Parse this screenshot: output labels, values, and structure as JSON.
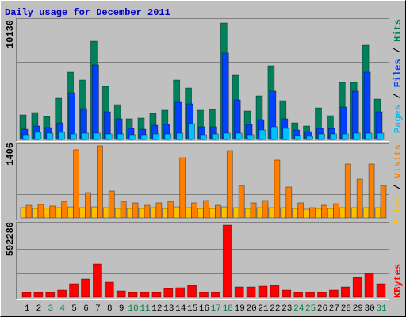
{
  "chart_data": [
    {
      "type": "bar",
      "title": "Daily usage for December 2011",
      "ylim": [
        0,
        10130
      ],
      "yticks": [
        10130
      ],
      "grid_lines": [
        3377,
        6753
      ],
      "legend_separator": " / ",
      "series": [
        {
          "name": "Pages",
          "color": "#00c0ff",
          "values": [
            413,
            620,
            551,
            620,
            482,
            551,
            551,
            482,
            482,
            413,
            413,
            482,
            482,
            551,
            1378,
            413,
            482,
            551,
            551,
            413,
            827,
            1103,
            965,
            345,
            276,
            482,
            482,
            482,
            551,
            551,
            551
          ]
        },
        {
          "name": "Files",
          "color": "#0040ff",
          "values": [
            896,
            1171,
            1034,
            1447,
            4066,
            2687,
            6478,
            2412,
            1792,
            965,
            896,
            1240,
            1309,
            3239,
            3101,
            1103,
            1103,
            7511,
            3446,
            1309,
            1723,
            4204,
            1792,
            827,
            689,
            965,
            965,
            2825,
            4204,
            5857,
            2412
          ]
        },
        {
          "name": "Hits",
          "color": "#00805c",
          "values": [
            2136,
            2343,
            1998,
            3583,
            5857,
            5168,
            8545,
            4617,
            3032,
            1792,
            1861,
            2274,
            2550,
            5168,
            4479,
            2550,
            2619,
            10130,
            5582,
            2481,
            3790,
            6409,
            3377,
            1447,
            1171,
            2756,
            2067,
            4962,
            4962,
            8201,
            3514
          ]
        }
      ]
    },
    {
      "type": "bar",
      "ylim": [
        0,
        1406
      ],
      "yticks": [
        1406
      ],
      "grid_lines": [
        469,
        937
      ],
      "legend_separator": " / ",
      "series": [
        {
          "name": "Sites",
          "color": "#ffc000",
          "values": [
            200,
            185,
            190,
            200,
            215,
            200,
            215,
            200,
            185,
            185,
            185,
            200,
            185,
            215,
            200,
            185,
            185,
            215,
            200,
            185,
            200,
            200,
            200,
            185,
            170,
            185,
            185,
            200,
            200,
            200,
            200
          ]
        },
        {
          "name": "Visits",
          "color": "#ff8000",
          "values": [
            247,
            263,
            232,
            324,
            1329,
            494,
            1406,
            525,
            324,
            294,
            247,
            294,
            324,
            1174,
            294,
            340,
            247,
            1313,
            633,
            294,
            340,
            1128,
            603,
            294,
            201,
            247,
            278,
            1051,
            757,
            1051,
            633
          ]
        }
      ]
    },
    {
      "type": "bar",
      "ylim": [
        0,
        592280
      ],
      "yticks": [
        592280
      ],
      "grid_lines": [
        197427,
        394853
      ],
      "categories": [
        "1",
        "2",
        "3",
        "4",
        "5",
        "6",
        "7",
        "8",
        "9",
        "10",
        "11",
        "12",
        "13",
        "14",
        "15",
        "16",
        "17",
        "18",
        "19",
        "20",
        "21",
        "22",
        "23",
        "24",
        "25",
        "26",
        "27",
        "28",
        "29",
        "30",
        "31"
      ],
      "category_colors": [
        "#000000",
        "#000000",
        "#008040",
        "#008040",
        "#000000",
        "#000000",
        "#000000",
        "#000000",
        "#000000",
        "#008040",
        "#008040",
        "#000000",
        "#000000",
        "#000000",
        "#000000",
        "#000000",
        "#008040",
        "#008040",
        "#000000",
        "#000000",
        "#000000",
        "#000000",
        "#000000",
        "#008040",
        "#008040",
        "#000000",
        "#000000",
        "#000000",
        "#000000",
        "#000000",
        "#008040"
      ],
      "series": [
        {
          "name": "KBytes",
          "color": "#ff0000",
          "values": [
            39050,
            39050,
            39050,
            58580,
            110650,
            149700,
            273360,
            123660,
            52070,
            39050,
            39050,
            39050,
            71590,
            78100,
            97630,
            39050,
            39050,
            592280,
            84610,
            84610,
            91120,
            97630,
            58580,
            39050,
            39050,
            39050,
            58580,
            84610,
            162720,
            195260,
            110650
          ]
        }
      ]
    }
  ]
}
